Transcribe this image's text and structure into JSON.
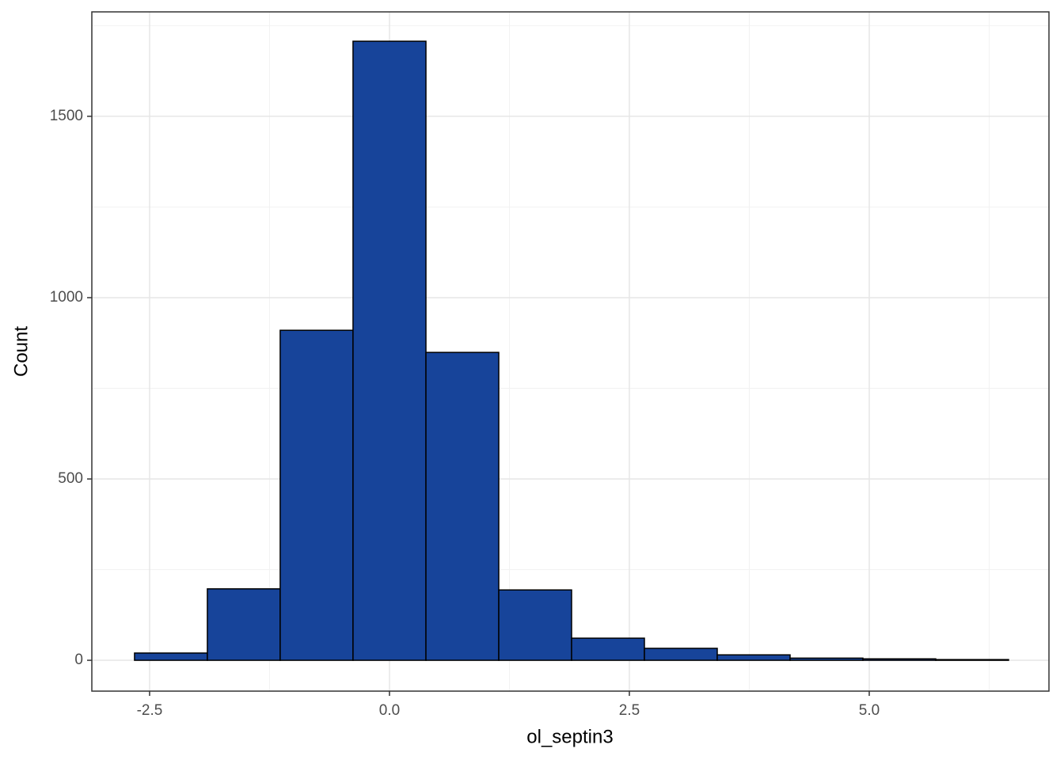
{
  "chart_data": {
    "type": "histogram",
    "x_label": "ol_septin3",
    "y_label": "Count",
    "bins": [
      -2.657,
      -1.898,
      -1.139,
      -0.38,
      0.38,
      1.139,
      1.898,
      2.657,
      3.416,
      4.175,
      4.934,
      5.693,
      6.452
    ],
    "counts": [
      20,
      197,
      910,
      1707,
      849,
      194,
      61,
      33,
      15,
      6,
      4,
      2
    ],
    "color": "#17449a",
    "edge_color": "#000000",
    "xlim": [
      -3.102,
      6.873
    ],
    "ylim": [
      -85,
      1788
    ],
    "xticks": [
      {
        "value": -2.5,
        "label": "-2.5"
      },
      {
        "value": 0,
        "label": "0.0"
      },
      {
        "value": 2.5,
        "label": "2.5"
      },
      {
        "value": 5,
        "label": "5.0"
      }
    ],
    "yticks": [
      0,
      500,
      1000,
      1500
    ],
    "x_minor_grid": [
      -1.25,
      1.25,
      3.75,
      6.25
    ],
    "y_minor_grid": [
      250,
      750,
      1250,
      1750
    ],
    "grid": true
  }
}
